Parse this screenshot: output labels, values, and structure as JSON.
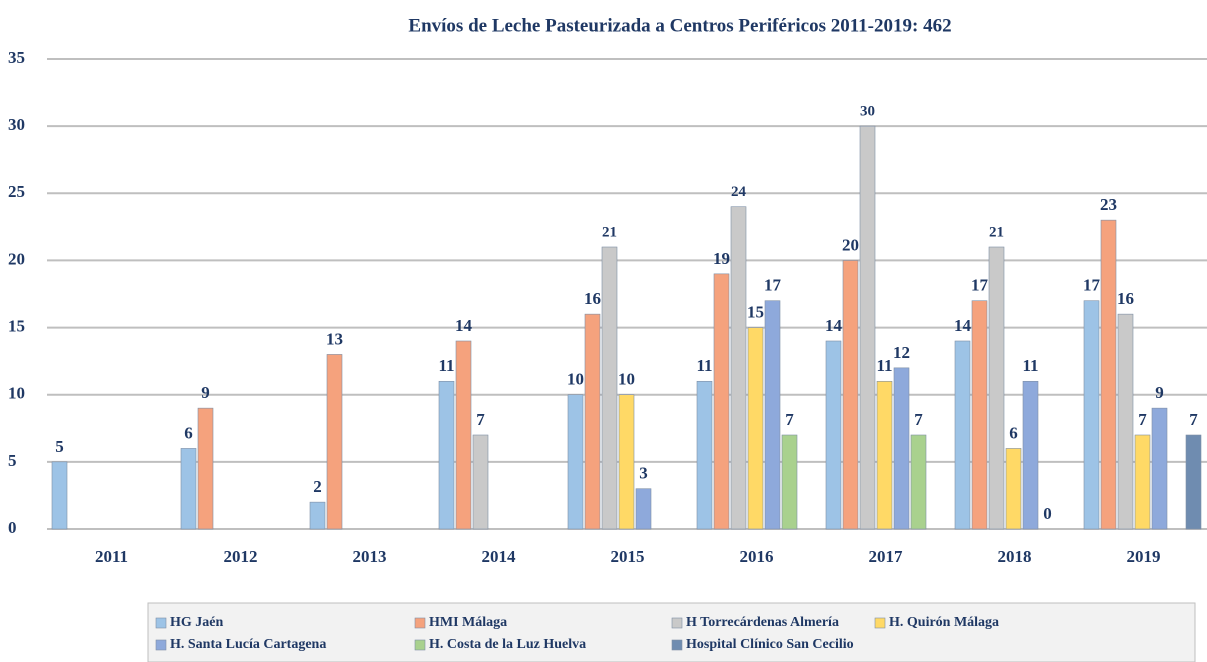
{
  "chart_data": {
    "type": "bar",
    "title": "Envíos de Leche Pasteurizada a Centros Periféricos 2011-2019: 462",
    "categories": [
      "2011",
      "2012",
      "2013",
      "2014",
      "2015",
      "2016",
      "2017",
      "2018",
      "2019"
    ],
    "series": [
      {
        "name": "HG Jaén",
        "color": "#9dc3e6",
        "values": [
          5,
          6,
          2,
          11,
          10,
          11,
          14,
          14,
          17
        ]
      },
      {
        "name": "HMI Málaga",
        "color": "#f5a27d",
        "values": [
          null,
          9,
          13,
          14,
          16,
          19,
          20,
          17,
          23
        ]
      },
      {
        "name": "H Torrecárdenas Almería",
        "color": "#c9c9c9",
        "values": [
          null,
          null,
          null,
          7,
          21,
          24,
          30,
          21,
          16
        ]
      },
      {
        "name": "H. Quirón Málaga",
        "color": "#ffd966",
        "values": [
          null,
          null,
          null,
          null,
          10,
          15,
          11,
          6,
          7
        ]
      },
      {
        "name": "H. Santa Lucía Cartagena",
        "color": "#8ea9db",
        "values": [
          null,
          null,
          null,
          null,
          3,
          17,
          12,
          11,
          9
        ]
      },
      {
        "name": "H. Costa de la Luz Huelva",
        "color": "#a9d18e",
        "values": [
          null,
          null,
          null,
          null,
          null,
          7,
          7,
          0,
          null
        ]
      },
      {
        "name": "Hospital Clínico San Cecilio",
        "color": "#6f8cb0",
        "values": [
          null,
          null,
          null,
          null,
          null,
          null,
          null,
          null,
          7
        ]
      }
    ],
    "ylim": [
      0,
      35
    ],
    "yticks": [
      0,
      5,
      10,
      15,
      20,
      25,
      30,
      35
    ],
    "grid": true,
    "legend": "bottom"
  }
}
